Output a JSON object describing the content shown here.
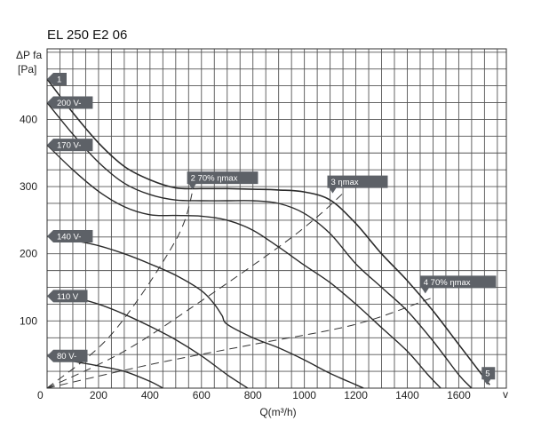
{
  "colors": {
    "tag": "#5d6167",
    "tag_text": "#ffffff",
    "curve": "#2a2a2a",
    "grid": "#555555"
  },
  "chart_data": {
    "type": "line",
    "title": "EL 250 E2 06",
    "ylabel_lines": [
      "ΔP fa",
      "[Pa]"
    ],
    "xlabel": "Q(m³/h)",
    "x_end_label": "v",
    "xlim": [
      0,
      1785
    ],
    "ylim": [
      0,
      505
    ],
    "x_ticks": [
      0,
      200,
      400,
      600,
      800,
      1000,
      1200,
      1400,
      1600
    ],
    "y_ticks": [
      100,
      200,
      300,
      400
    ],
    "grid": true,
    "series": [
      {
        "name": "",
        "style": "max",
        "x": [
          0,
          100,
          200,
          300,
          400,
          500,
          600,
          700,
          800,
          900,
          1000,
          1100,
          1200,
          1300,
          1400,
          1500,
          1600,
          1700,
          1720
        ],
        "y": [
          460,
          410,
          365,
          330,
          310,
          298,
          297,
          297,
          296,
          295,
          292,
          280,
          245,
          200,
          160,
          115,
          65,
          15,
          5
        ]
      },
      {
        "name": "200 V-",
        "x": [
          0,
          100,
          200,
          300,
          400,
          500,
          600,
          700,
          800,
          900,
          1000,
          1100,
          1200,
          1300,
          1400,
          1500,
          1600,
          1650
        ],
        "y": [
          425,
          378,
          336,
          305,
          288,
          280,
          279,
          279,
          279,
          275,
          260,
          230,
          185,
          150,
          115,
          70,
          20,
          0
        ]
      },
      {
        "name": "170 V-",
        "x": [
          0,
          100,
          200,
          300,
          400,
          500,
          600,
          700,
          800,
          900,
          1000,
          1100,
          1200,
          1300,
          1400,
          1480,
          1530
        ],
        "y": [
          362,
          325,
          293,
          270,
          258,
          257,
          256,
          250,
          235,
          210,
          183,
          157,
          125,
          90,
          55,
          20,
          0
        ]
      },
      {
        "name": "140 V-",
        "x": [
          0,
          100,
          200,
          300,
          400,
          500,
          600,
          650,
          680,
          700,
          800,
          900,
          1000,
          1100,
          1200,
          1230
        ],
        "y": [
          226,
          220,
          212,
          200,
          185,
          168,
          145,
          125,
          108,
          95,
          75,
          60,
          42,
          22,
          5,
          0
        ]
      },
      {
        "name": "110 V",
        "x": [
          0,
          100,
          200,
          300,
          400,
          500,
          600,
          700,
          780
        ],
        "y": [
          137,
          135,
          125,
          110,
          92,
          72,
          48,
          20,
          0
        ]
      },
      {
        "name": "80 V-",
        "x": [
          0,
          100,
          200,
          300,
          400,
          450
        ],
        "y": [
          48,
          40,
          33,
          25,
          10,
          0
        ]
      }
    ],
    "efficiency_lines": [
      {
        "x": [
          0,
          250,
          500,
          570
        ],
        "y": [
          0,
          80,
          220,
          300
        ]
      },
      {
        "x": [
          0,
          300,
          600,
          900,
          1050,
          1150
        ],
        "y": [
          0,
          55,
          130,
          210,
          255,
          290
        ]
      },
      {
        "x": [
          0,
          400,
          800,
          1200,
          1500
        ],
        "y": [
          0,
          35,
          65,
          95,
          135
        ]
      }
    ],
    "point_labels": [
      {
        "text": "1",
        "x": 0,
        "y": 460
      },
      {
        "text": "2   70% ηmax",
        "x": 565,
        "y": 296
      },
      {
        "text": "3     ηmax",
        "x": 1110,
        "y": 290
      },
      {
        "text": "4    70% ηmax",
        "x": 1470,
        "y": 141
      },
      {
        "text": "5",
        "x": 1710,
        "y": 5
      }
    ],
    "voltage_labels": [
      {
        "text": "200 V-",
        "y": 425
      },
      {
        "text": "170 V-",
        "y": 362
      },
      {
        "text": "140 V-",
        "y": 226
      },
      {
        "text": "110 V",
        "y": 137
      },
      {
        "text": "80 V-",
        "y": 48
      }
    ]
  }
}
